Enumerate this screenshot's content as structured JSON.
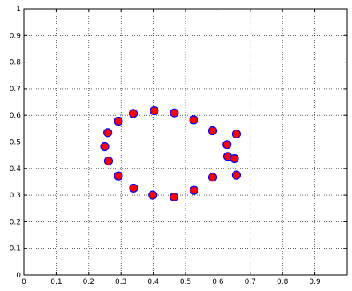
{
  "chart_data": {
    "type": "scatter",
    "title": "",
    "xlabel": "",
    "ylabel": "",
    "xlim": [
      0,
      1
    ],
    "ylim": [
      0,
      1
    ],
    "xticks": [
      0,
      0.1,
      0.2,
      0.3,
      0.4,
      0.5,
      0.6,
      0.7,
      0.8,
      0.9
    ],
    "yticks": [
      0,
      0.1,
      0.2,
      0.3,
      0.4,
      0.5,
      0.6,
      0.7,
      0.8,
      0.9,
      1
    ],
    "xtick_labels": [
      "0",
      "0.1",
      "0.2",
      "0.3",
      "0.4",
      "0.5",
      "0.6",
      "0.7",
      "0.8",
      "0.9"
    ],
    "ytick_labels": [
      "0",
      "0.1",
      "0.2",
      "0.3",
      "0.4",
      "0.5",
      "0.6",
      "0.7",
      "0.8",
      "0.9",
      "1"
    ],
    "grid": true,
    "grid_style": "dotted",
    "marker": "circle",
    "marker_fill": "#ff0000",
    "marker_edge": "#0000ff",
    "points": [
      {
        "x": 0.403,
        "y": 0.617
      },
      {
        "x": 0.465,
        "y": 0.609
      },
      {
        "x": 0.338,
        "y": 0.607
      },
      {
        "x": 0.525,
        "y": 0.583
      },
      {
        "x": 0.292,
        "y": 0.578
      },
      {
        "x": 0.583,
        "y": 0.542
      },
      {
        "x": 0.259,
        "y": 0.535
      },
      {
        "x": 0.657,
        "y": 0.53
      },
      {
        "x": 0.628,
        "y": 0.49
      },
      {
        "x": 0.25,
        "y": 0.482
      },
      {
        "x": 0.63,
        "y": 0.445
      },
      {
        "x": 0.651,
        "y": 0.437
      },
      {
        "x": 0.261,
        "y": 0.428
      },
      {
        "x": 0.292,
        "y": 0.372
      },
      {
        "x": 0.657,
        "y": 0.375
      },
      {
        "x": 0.583,
        "y": 0.367
      },
      {
        "x": 0.339,
        "y": 0.326
      },
      {
        "x": 0.526,
        "y": 0.318
      },
      {
        "x": 0.398,
        "y": 0.3
      },
      {
        "x": 0.464,
        "y": 0.293
      }
    ]
  }
}
